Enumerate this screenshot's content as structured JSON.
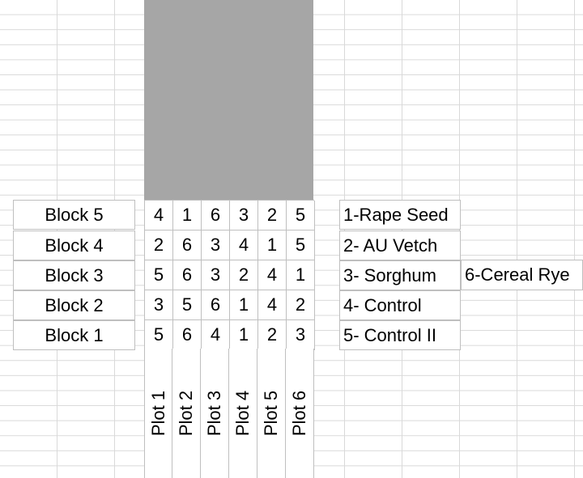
{
  "blocks": [
    {
      "label": "Block 5",
      "values": [
        "4",
        "1",
        "6",
        "3",
        "2",
        "5"
      ]
    },
    {
      "label": "Block 4",
      "values": [
        "2",
        "6",
        "3",
        "4",
        "1",
        "5"
      ]
    },
    {
      "label": "Block 3",
      "values": [
        "5",
        "6",
        "3",
        "2",
        "4",
        "1"
      ]
    },
    {
      "label": "Block 2",
      "values": [
        "3",
        "5",
        "6",
        "1",
        "4",
        "2"
      ]
    },
    {
      "label": "Block 1",
      "values": [
        "5",
        "6",
        "4",
        "1",
        "2",
        "3"
      ]
    }
  ],
  "plots": [
    "Plot 1",
    "Plot 2",
    "Plot 3",
    "Plot 4",
    "Plot 5",
    "Plot 6"
  ],
  "legend": [
    "1-Rape Seed",
    "2- AU Vetch",
    "3- Sorghum",
    "4- Control",
    "5- Control II"
  ],
  "legend_extra": "6-Cereal Rye",
  "colors": {
    "shaded_region": "#a6a6a6",
    "gridline": "#d9d9d9",
    "cell_border": "#bfbfbf"
  }
}
